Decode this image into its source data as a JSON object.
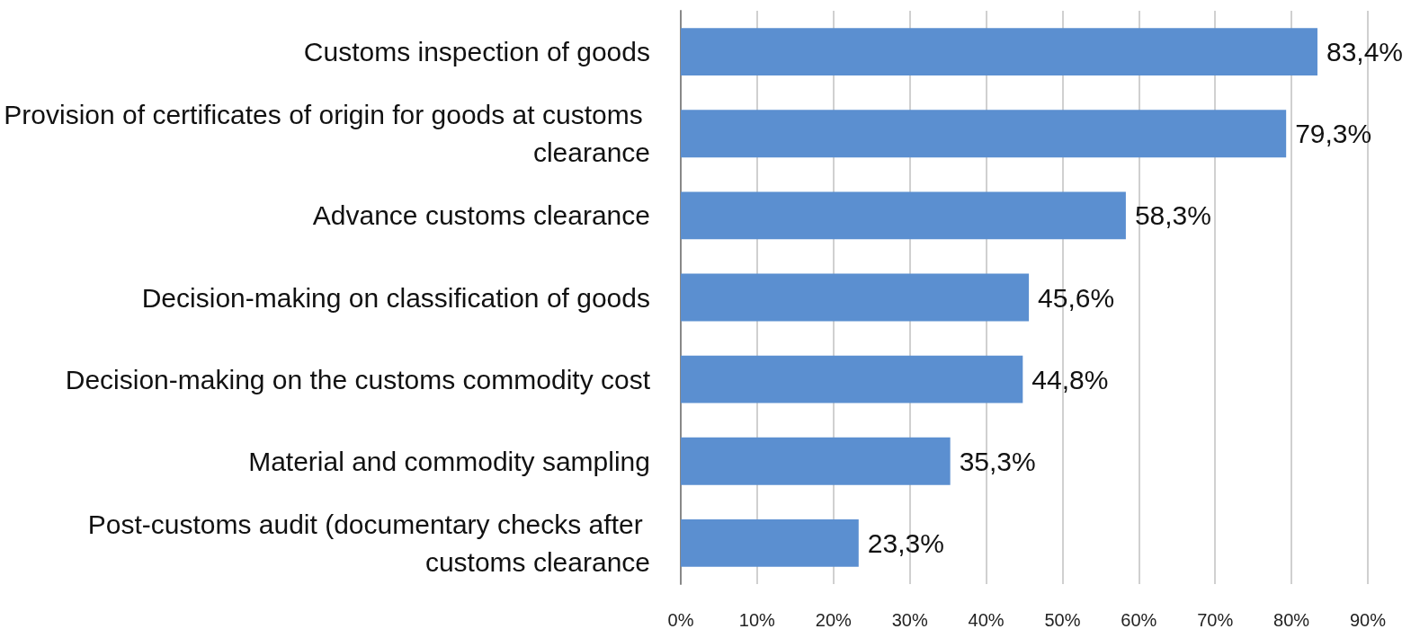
{
  "chart_data": {
    "type": "bar",
    "orientation": "horizontal",
    "categories": [
      "Customs inspection of goods",
      "Provision of certificates of origin for goods at customs clearance",
      "Advance customs clearance",
      "Decision-making on classification of goods",
      "Decision-making on the customs commodity cost",
      "Material and commodity sampling",
      "Post-customs audit (documentary checks after customs clearance"
    ],
    "values": [
      83.4,
      79.3,
      58.3,
      45.6,
      44.8,
      35.3,
      23.3
    ],
    "value_labels": [
      "83,4%",
      "79,3%",
      "58,3%",
      "45,6%",
      "44,8%",
      "35,3%",
      "23,3%"
    ],
    "color": "#5b8fd0",
    "xlim": [
      0,
      90
    ],
    "xticks": [
      {
        "value": 0,
        "label": "0%"
      },
      {
        "value": 10,
        "label": "10%"
      },
      {
        "value": 20,
        "label": "20%"
      },
      {
        "value": 30,
        "label": "30%"
      },
      {
        "value": 40,
        "label": "40%"
      },
      {
        "value": 50,
        "label": "50%"
      },
      {
        "value": 60,
        "label": "60%"
      },
      {
        "value": 70,
        "label": "70%"
      },
      {
        "value": 80,
        "label": "80%"
      },
      {
        "value": 90,
        "label": "90%"
      }
    ],
    "grid": "x"
  }
}
